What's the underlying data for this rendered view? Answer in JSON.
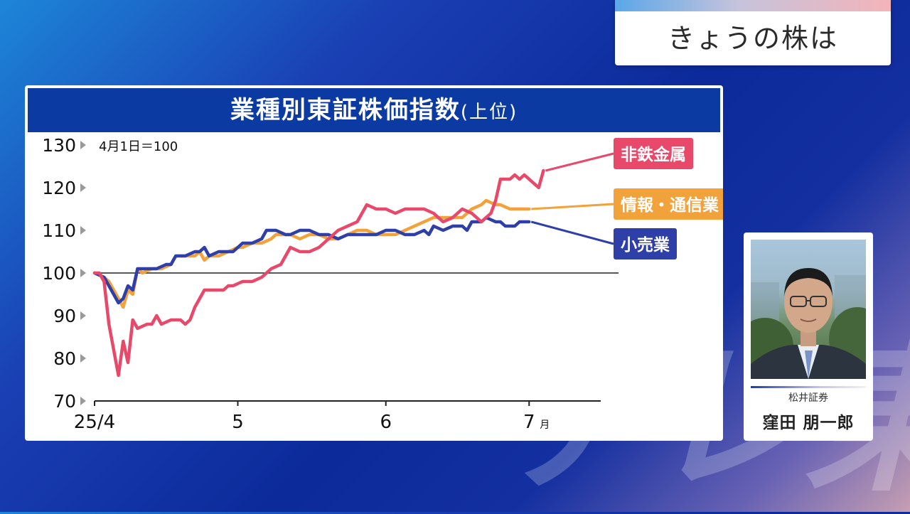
{
  "watermark": "テレ東",
  "topic": {
    "label": "きょうの株は"
  },
  "chart_data": {
    "type": "line",
    "title": "業種別東証株価指数",
    "subtitle": "(上位)",
    "note": "4月1日＝100",
    "baseline": 100,
    "ylim": [
      70,
      130
    ],
    "yticks": [
      130,
      120,
      110,
      100,
      90,
      80,
      70
    ],
    "xlim": [
      0,
      106
    ],
    "xticks": [
      {
        "label": "25/4",
        "x": 0
      },
      {
        "label": "5",
        "x": 30
      },
      {
        "label": "6",
        "x": 61
      },
      {
        "label": "7",
        "x": 91,
        "suffix": "月"
      }
    ],
    "grid": false,
    "legend": "right end labels",
    "series": [
      {
        "name": "情報・通信業",
        "color": "#f2a23a",
        "points": [
          [
            0,
            100
          ],
          [
            2,
            99
          ],
          [
            3,
            98
          ],
          [
            5,
            94
          ],
          [
            6,
            92
          ],
          [
            7,
            96
          ],
          [
            8,
            95
          ],
          [
            9,
            101
          ],
          [
            10,
            100
          ],
          [
            12,
            101
          ],
          [
            14,
            101
          ],
          [
            16,
            102
          ],
          [
            17,
            104
          ],
          [
            19,
            104
          ],
          [
            21,
            104
          ],
          [
            22,
            105
          ],
          [
            23,
            103
          ],
          [
            24,
            104
          ],
          [
            26,
            104
          ],
          [
            28,
            105
          ],
          [
            30,
            106
          ],
          [
            31,
            106
          ],
          [
            33,
            107
          ],
          [
            35,
            107
          ],
          [
            37,
            108
          ],
          [
            38,
            109
          ],
          [
            40,
            109
          ],
          [
            41,
            109
          ],
          [
            43,
            108
          ],
          [
            45,
            109
          ],
          [
            47,
            109
          ],
          [
            49,
            108
          ],
          [
            51,
            108
          ],
          [
            53,
            109
          ],
          [
            55,
            110
          ],
          [
            57,
            110
          ],
          [
            59,
            109
          ],
          [
            61,
            109
          ],
          [
            63,
            109
          ],
          [
            65,
            110
          ],
          [
            67,
            111
          ],
          [
            69,
            112
          ],
          [
            71,
            113
          ],
          [
            73,
            113
          ],
          [
            75,
            113
          ],
          [
            77,
            113
          ],
          [
            78,
            114
          ],
          [
            79,
            115
          ],
          [
            81,
            116
          ],
          [
            82,
            117
          ],
          [
            84,
            116
          ],
          [
            85,
            116
          ],
          [
            87,
            115
          ],
          [
            89,
            115
          ],
          [
            91,
            115
          ]
        ]
      },
      {
        "name": "小売業",
        "color": "#2e3fa8",
        "points": [
          [
            0,
            100
          ],
          [
            2,
            99
          ],
          [
            3,
            97
          ],
          [
            4,
            95
          ],
          [
            5,
            93
          ],
          [
            6,
            94
          ],
          [
            7,
            97
          ],
          [
            8,
            96
          ],
          [
            9,
            101
          ],
          [
            10,
            101
          ],
          [
            11,
            101
          ],
          [
            13,
            101
          ],
          [
            15,
            102
          ],
          [
            16,
            102
          ],
          [
            17,
            104
          ],
          [
            19,
            104
          ],
          [
            21,
            105
          ],
          [
            22,
            105
          ],
          [
            23,
            106
          ],
          [
            24,
            104
          ],
          [
            26,
            105
          ],
          [
            28,
            105
          ],
          [
            29,
            105
          ],
          [
            31,
            107
          ],
          [
            33,
            107
          ],
          [
            35,
            108
          ],
          [
            36,
            110
          ],
          [
            38,
            110
          ],
          [
            40,
            109
          ],
          [
            41,
            109
          ],
          [
            43,
            110
          ],
          [
            45,
            110
          ],
          [
            47,
            109
          ],
          [
            49,
            109
          ],
          [
            51,
            108
          ],
          [
            53,
            109
          ],
          [
            55,
            109
          ],
          [
            57,
            109
          ],
          [
            59,
            109
          ],
          [
            61,
            110
          ],
          [
            63,
            110
          ],
          [
            65,
            109
          ],
          [
            67,
            109
          ],
          [
            69,
            110
          ],
          [
            70,
            109
          ],
          [
            71,
            111
          ],
          [
            73,
            110
          ],
          [
            75,
            111
          ],
          [
            77,
            111
          ],
          [
            78,
            110
          ],
          [
            79,
            112
          ],
          [
            81,
            112
          ],
          [
            82,
            113
          ],
          [
            84,
            112
          ],
          [
            85,
            112
          ],
          [
            86,
            111
          ],
          [
            88,
            111
          ],
          [
            89,
            112
          ],
          [
            91,
            112
          ]
        ]
      },
      {
        "name": "非鉄金属",
        "color": "#e8486a",
        "points": [
          [
            0,
            100
          ],
          [
            1,
            100
          ],
          [
            2,
            98
          ],
          [
            3,
            88
          ],
          [
            4,
            82
          ],
          [
            5,
            76
          ],
          [
            6,
            84
          ],
          [
            7,
            79
          ],
          [
            8,
            89
          ],
          [
            9,
            87
          ],
          [
            11,
            88
          ],
          [
            12,
            88
          ],
          [
            13,
            90
          ],
          [
            14,
            88
          ],
          [
            16,
            89
          ],
          [
            18,
            89
          ],
          [
            19,
            88
          ],
          [
            20,
            89
          ],
          [
            21,
            92
          ],
          [
            23,
            96
          ],
          [
            25,
            96
          ],
          [
            27,
            96
          ],
          [
            28,
            97
          ],
          [
            29,
            97
          ],
          [
            31,
            98
          ],
          [
            33,
            98
          ],
          [
            35,
            99
          ],
          [
            37,
            101
          ],
          [
            39,
            102
          ],
          [
            40,
            104
          ],
          [
            41,
            106
          ],
          [
            43,
            105
          ],
          [
            45,
            105
          ],
          [
            47,
            106
          ],
          [
            49,
            108
          ],
          [
            51,
            110
          ],
          [
            53,
            111
          ],
          [
            55,
            112
          ],
          [
            57,
            116
          ],
          [
            59,
            115
          ],
          [
            61,
            115
          ],
          [
            63,
            114
          ],
          [
            65,
            115
          ],
          [
            67,
            115
          ],
          [
            69,
            115
          ],
          [
            71,
            114
          ],
          [
            73,
            112
          ],
          [
            75,
            113
          ],
          [
            77,
            115
          ],
          [
            79,
            114
          ],
          [
            81,
            112
          ],
          [
            83,
            114
          ],
          [
            84,
            117
          ],
          [
            85,
            122
          ],
          [
            87,
            122
          ],
          [
            88,
            123
          ],
          [
            89,
            122
          ],
          [
            90,
            123
          ],
          [
            92,
            121
          ],
          [
            93,
            120
          ],
          [
            94,
            124
          ]
        ]
      }
    ]
  },
  "guest": {
    "affiliation": "松井証券",
    "name": "窪田 朋一郎"
  }
}
